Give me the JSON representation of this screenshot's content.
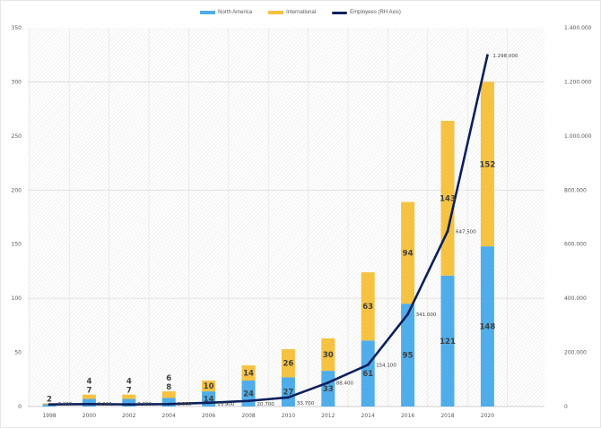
{
  "chart_data": {
    "type": "bar",
    "title": "",
    "xlabel": "",
    "ylabel": "",
    "y2label": "",
    "categories": [
      "1998",
      "2000",
      "2002",
      "2004",
      "2006",
      "2008",
      "2010",
      "2012",
      "2014",
      "2016",
      "2018",
      "2020"
    ],
    "series": [
      {
        "name": "North America",
        "kind": "stacked-bar",
        "axis": "left",
        "color": "#4fadea",
        "values": [
          2,
          7,
          7,
          8,
          14,
          24,
          27,
          33,
          61,
          95,
          121,
          148
        ],
        "labels": [
          "2",
          "7",
          "7",
          "8",
          "14",
          "24",
          "27",
          "33",
          "61",
          "95",
          "121",
          "148"
        ]
      },
      {
        "name": "International",
        "kind": "stacked-bar",
        "axis": "left",
        "color": "#f5c242",
        "values": [
          1,
          4,
          4,
          6,
          10,
          14,
          26,
          30,
          63,
          94,
          143,
          152
        ],
        "labels": [
          "",
          "4",
          "4",
          "6",
          "10",
          "14",
          "26",
          "30",
          "63",
          "94",
          "143",
          "152"
        ]
      },
      {
        "name": "Employees (RH Axis)",
        "kind": "line",
        "axis": "right",
        "color": "#0c1f5c",
        "values": [
          7600,
          9000,
          7800,
          9000,
          13900,
          20700,
          33700,
          88400,
          154100,
          341000,
          647500,
          1298000
        ],
        "labels": [
          "7.600",
          "9.000",
          "7.800",
          "9.000",
          "13.900",
          "20.700",
          "33.700",
          "88.400",
          "154.100",
          "341.000",
          "647.500",
          "1.298.000"
        ]
      }
    ],
    "ylim": [
      0,
      350
    ],
    "y2lim": [
      0,
      1400000
    ],
    "yticks": [
      "0",
      "50",
      "100",
      "150",
      "200",
      "250",
      "300",
      "350"
    ],
    "y2ticks": [
      "0",
      "200.000",
      "400.000",
      "600.000",
      "800.000",
      "1.000.000",
      "1.200.000",
      "1.400.000"
    ],
    "grid": true,
    "legend_position": "top-center"
  }
}
